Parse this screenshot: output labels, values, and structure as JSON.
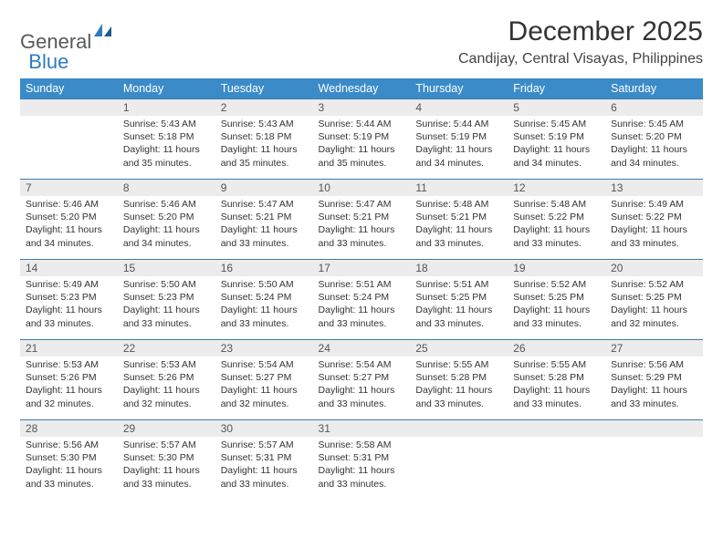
{
  "logo": {
    "part1": "General",
    "part2": "Blue"
  },
  "title": "December 2025",
  "location": "Candijay, Central Visayas, Philippines",
  "colors": {
    "header_bg": "#3b8bc9",
    "header_text": "#ffffff",
    "row_border": "#3b7db0",
    "daynum_bg": "#ececec",
    "logo_gray": "#58595b",
    "logo_blue": "#2f7bbf"
  },
  "dow": [
    "Sunday",
    "Monday",
    "Tuesday",
    "Wednesday",
    "Thursday",
    "Friday",
    "Saturday"
  ],
  "weeks": [
    [
      {
        "n": "",
        "lines": []
      },
      {
        "n": "1",
        "lines": [
          "Sunrise: 5:43 AM",
          "Sunset: 5:18 PM",
          "Daylight: 11 hours",
          "and 35 minutes."
        ]
      },
      {
        "n": "2",
        "lines": [
          "Sunrise: 5:43 AM",
          "Sunset: 5:18 PM",
          "Daylight: 11 hours",
          "and 35 minutes."
        ]
      },
      {
        "n": "3",
        "lines": [
          "Sunrise: 5:44 AM",
          "Sunset: 5:19 PM",
          "Daylight: 11 hours",
          "and 35 minutes."
        ]
      },
      {
        "n": "4",
        "lines": [
          "Sunrise: 5:44 AM",
          "Sunset: 5:19 PM",
          "Daylight: 11 hours",
          "and 34 minutes."
        ]
      },
      {
        "n": "5",
        "lines": [
          "Sunrise: 5:45 AM",
          "Sunset: 5:19 PM",
          "Daylight: 11 hours",
          "and 34 minutes."
        ]
      },
      {
        "n": "6",
        "lines": [
          "Sunrise: 5:45 AM",
          "Sunset: 5:20 PM",
          "Daylight: 11 hours",
          "and 34 minutes."
        ]
      }
    ],
    [
      {
        "n": "7",
        "lines": [
          "Sunrise: 5:46 AM",
          "Sunset: 5:20 PM",
          "Daylight: 11 hours",
          "and 34 minutes."
        ]
      },
      {
        "n": "8",
        "lines": [
          "Sunrise: 5:46 AM",
          "Sunset: 5:20 PM",
          "Daylight: 11 hours",
          "and 34 minutes."
        ]
      },
      {
        "n": "9",
        "lines": [
          "Sunrise: 5:47 AM",
          "Sunset: 5:21 PM",
          "Daylight: 11 hours",
          "and 33 minutes."
        ]
      },
      {
        "n": "10",
        "lines": [
          "Sunrise: 5:47 AM",
          "Sunset: 5:21 PM",
          "Daylight: 11 hours",
          "and 33 minutes."
        ]
      },
      {
        "n": "11",
        "lines": [
          "Sunrise: 5:48 AM",
          "Sunset: 5:21 PM",
          "Daylight: 11 hours",
          "and 33 minutes."
        ]
      },
      {
        "n": "12",
        "lines": [
          "Sunrise: 5:48 AM",
          "Sunset: 5:22 PM",
          "Daylight: 11 hours",
          "and 33 minutes."
        ]
      },
      {
        "n": "13",
        "lines": [
          "Sunrise: 5:49 AM",
          "Sunset: 5:22 PM",
          "Daylight: 11 hours",
          "and 33 minutes."
        ]
      }
    ],
    [
      {
        "n": "14",
        "lines": [
          "Sunrise: 5:49 AM",
          "Sunset: 5:23 PM",
          "Daylight: 11 hours",
          "and 33 minutes."
        ]
      },
      {
        "n": "15",
        "lines": [
          "Sunrise: 5:50 AM",
          "Sunset: 5:23 PM",
          "Daylight: 11 hours",
          "and 33 minutes."
        ]
      },
      {
        "n": "16",
        "lines": [
          "Sunrise: 5:50 AM",
          "Sunset: 5:24 PM",
          "Daylight: 11 hours",
          "and 33 minutes."
        ]
      },
      {
        "n": "17",
        "lines": [
          "Sunrise: 5:51 AM",
          "Sunset: 5:24 PM",
          "Daylight: 11 hours",
          "and 33 minutes."
        ]
      },
      {
        "n": "18",
        "lines": [
          "Sunrise: 5:51 AM",
          "Sunset: 5:25 PM",
          "Daylight: 11 hours",
          "and 33 minutes."
        ]
      },
      {
        "n": "19",
        "lines": [
          "Sunrise: 5:52 AM",
          "Sunset: 5:25 PM",
          "Daylight: 11 hours",
          "and 33 minutes."
        ]
      },
      {
        "n": "20",
        "lines": [
          "Sunrise: 5:52 AM",
          "Sunset: 5:25 PM",
          "Daylight: 11 hours",
          "and 32 minutes."
        ]
      }
    ],
    [
      {
        "n": "21",
        "lines": [
          "Sunrise: 5:53 AM",
          "Sunset: 5:26 PM",
          "Daylight: 11 hours",
          "and 32 minutes."
        ]
      },
      {
        "n": "22",
        "lines": [
          "Sunrise: 5:53 AM",
          "Sunset: 5:26 PM",
          "Daylight: 11 hours",
          "and 32 minutes."
        ]
      },
      {
        "n": "23",
        "lines": [
          "Sunrise: 5:54 AM",
          "Sunset: 5:27 PM",
          "Daylight: 11 hours",
          "and 32 minutes."
        ]
      },
      {
        "n": "24",
        "lines": [
          "Sunrise: 5:54 AM",
          "Sunset: 5:27 PM",
          "Daylight: 11 hours",
          "and 33 minutes."
        ]
      },
      {
        "n": "25",
        "lines": [
          "Sunrise: 5:55 AM",
          "Sunset: 5:28 PM",
          "Daylight: 11 hours",
          "and 33 minutes."
        ]
      },
      {
        "n": "26",
        "lines": [
          "Sunrise: 5:55 AM",
          "Sunset: 5:28 PM",
          "Daylight: 11 hours",
          "and 33 minutes."
        ]
      },
      {
        "n": "27",
        "lines": [
          "Sunrise: 5:56 AM",
          "Sunset: 5:29 PM",
          "Daylight: 11 hours",
          "and 33 minutes."
        ]
      }
    ],
    [
      {
        "n": "28",
        "lines": [
          "Sunrise: 5:56 AM",
          "Sunset: 5:30 PM",
          "Daylight: 11 hours",
          "and 33 minutes."
        ]
      },
      {
        "n": "29",
        "lines": [
          "Sunrise: 5:57 AM",
          "Sunset: 5:30 PM",
          "Daylight: 11 hours",
          "and 33 minutes."
        ]
      },
      {
        "n": "30",
        "lines": [
          "Sunrise: 5:57 AM",
          "Sunset: 5:31 PM",
          "Daylight: 11 hours",
          "and 33 minutes."
        ]
      },
      {
        "n": "31",
        "lines": [
          "Sunrise: 5:58 AM",
          "Sunset: 5:31 PM",
          "Daylight: 11 hours",
          "and 33 minutes."
        ]
      },
      {
        "n": "",
        "lines": []
      },
      {
        "n": "",
        "lines": []
      },
      {
        "n": "",
        "lines": []
      }
    ]
  ]
}
